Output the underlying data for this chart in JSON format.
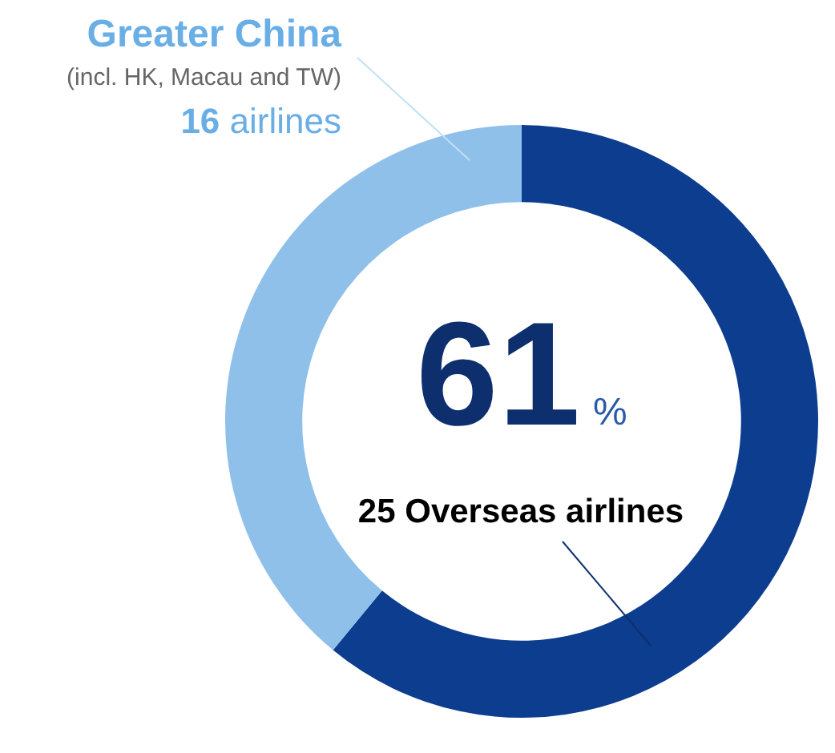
{
  "chart_data": {
    "type": "donut",
    "categories": [
      "Overseas airlines",
      "Greater China"
    ],
    "values": [
      25,
      16
    ],
    "colors": [
      "#0d3d8f",
      "#8fc0ea"
    ],
    "value_labels": [
      "25",
      "16"
    ],
    "annotations": [
      "(incl. HK, Macau and TW)",
      "airlines",
      "61",
      "%"
    ],
    "legend": false
  }
}
